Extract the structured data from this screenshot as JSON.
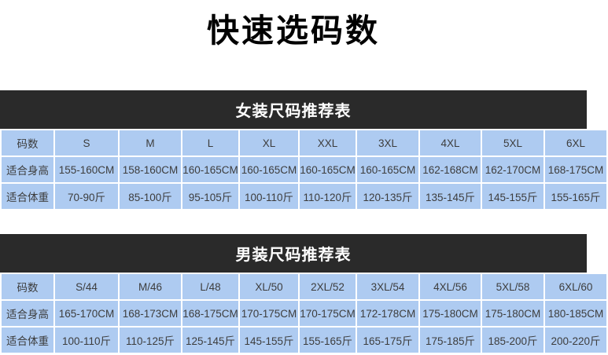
{
  "page_title": "快速选码数",
  "colors": {
    "title_text": "#000000",
    "section_header_bg": "#2a2a2a",
    "section_header_text": "#ffffff",
    "cell_bg": "#aecbf1",
    "cell_border": "#ffffff",
    "cell_text": "#3d3d3d"
  },
  "women_table": {
    "title": "女装尺码推荐表",
    "row_labels": [
      "码数",
      "适合身高",
      "适合体重"
    ],
    "rows": [
      [
        "码数",
        "S",
        "M",
        "L",
        "XL",
        "XXL",
        "3XL",
        "4XL",
        "5XL",
        "6XL"
      ],
      [
        "适合身高",
        "155-160CM",
        "158-160CM",
        "160-165CM",
        "160-165CM",
        "160-165CM",
        "160-165CM",
        "162-168CM",
        "162-170CM",
        "168-175CM"
      ],
      [
        "适合体重",
        "70-90斤",
        "85-100斤",
        "95-105斤",
        "100-110斤",
        "110-120斤",
        "120-135斤",
        "135-145斤",
        "145-155斤",
        "155-165斤"
      ]
    ]
  },
  "men_table": {
    "title": "男装尺码推荐表",
    "row_labels": [
      "码数",
      "适合身高",
      "适合体重"
    ],
    "rows": [
      [
        "码数",
        "S/44",
        "M/46",
        "L/48",
        "XL/50",
        "2XL/52",
        "3XL/54",
        "4XL/56",
        "5XL/58",
        "6XL/60"
      ],
      [
        "适合身高",
        "165-170CM",
        "168-173CM",
        "168-175CM",
        "170-175CM",
        "170-175CM",
        "172-178CM",
        "175-180CM",
        "175-180CM",
        "180-185CM"
      ],
      [
        "适合体重",
        "100-110斤",
        "110-125斤",
        "125-145斤",
        "145-155斤",
        "155-165斤",
        "165-175斤",
        "175-185斤",
        "185-200斤",
        "200-220斤"
      ]
    ]
  }
}
